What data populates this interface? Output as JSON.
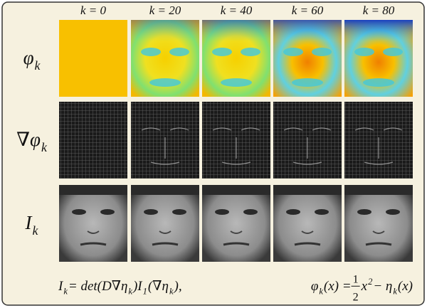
{
  "columns": [
    "k = 0",
    "k = 20",
    "k = 40",
    "k = 60",
    "k = 80"
  ],
  "rows": [
    {
      "label": [
        {
          "text": "φ"
        },
        {
          "sub": "k"
        }
      ]
    },
    {
      "label": [
        {
          "text": "∇φ"
        },
        {
          "sub": "k"
        }
      ]
    },
    {
      "label": [
        {
          "text": "I"
        },
        {
          "sub": "k"
        }
      ]
    }
  ],
  "equations": [
    [
      {
        "text": "I"
      },
      {
        "sub": "k"
      },
      {
        "text": " = det(D∇η"
      },
      {
        "sub": "k"
      },
      {
        "text": ")I"
      },
      {
        "sub": "1"
      },
      {
        "text": "(∇η"
      },
      {
        "sub": "k"
      },
      {
        "text": "),"
      }
    ],
    [
      {
        "text": "φ"
      },
      {
        "sub": "k"
      },
      {
        "text": "(x) = "
      },
      {
        "num": "1",
        "den": "2"
      },
      {
        "text": "x"
      },
      {
        "sup": "2"
      },
      {
        "text": " − η"
      },
      {
        "sub": "k"
      },
      {
        "text": "(x)"
      }
    ]
  ]
}
